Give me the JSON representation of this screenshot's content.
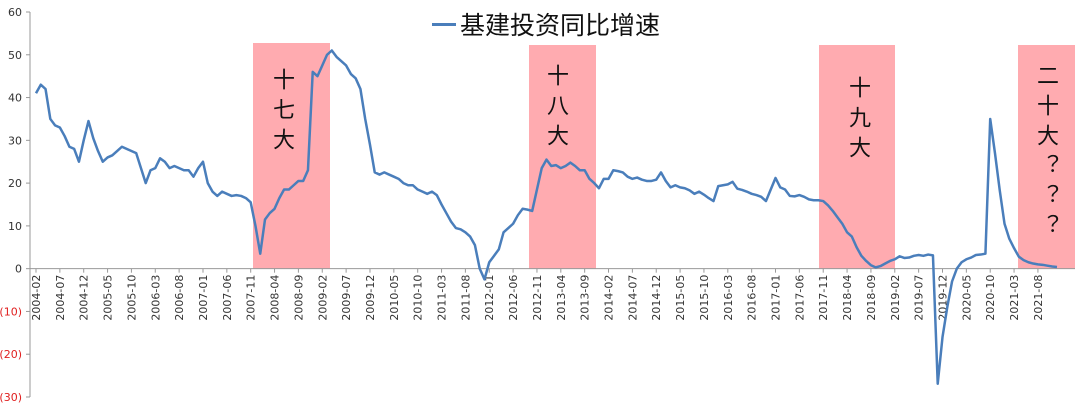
{
  "chart_data": {
    "type": "line",
    "categories": [
      "2004-02",
      null,
      null,
      null,
      null,
      "2004-07",
      null,
      null,
      null,
      null,
      "2004-12",
      null,
      null,
      null,
      null,
      "2005-05",
      null,
      null,
      null,
      null,
      "2005-10",
      null,
      null,
      null,
      null,
      "2006-03",
      null,
      null,
      null,
      null,
      "2006-08",
      null,
      null,
      null,
      null,
      "2007-01",
      null,
      null,
      null,
      null,
      "2007-06",
      null,
      null,
      null,
      null,
      "2007-11",
      null,
      null,
      null,
      null,
      "2008-04",
      null,
      null,
      null,
      null,
      "2008-09",
      null,
      null,
      null,
      null,
      "2009-02",
      null,
      null,
      null,
      null,
      "2009-07",
      null,
      null,
      null,
      null,
      "2009-12",
      null,
      null,
      null,
      null,
      "2010-05",
      null,
      null,
      null,
      null,
      "2010-10",
      null,
      null,
      null,
      null,
      "2011-03",
      null,
      null,
      null,
      null,
      "2011-08",
      null,
      null,
      null,
      null,
      "2012-01",
      null,
      null,
      null,
      null,
      "2012-06",
      null,
      null,
      null,
      null,
      "2012-11",
      null,
      null,
      null,
      null,
      "2013-04",
      null,
      null,
      null,
      null,
      "2013-09",
      null,
      null,
      null,
      null,
      "2014-02",
      null,
      null,
      null,
      null,
      "2014-07",
      null,
      null,
      null,
      null,
      "2014-12",
      null,
      null,
      null,
      null,
      "2015-05",
      null,
      null,
      null,
      null,
      "2015-10",
      null,
      null,
      null,
      null,
      "2016-03",
      null,
      null,
      null,
      null,
      "2016-08",
      null,
      null,
      null,
      null,
      "2017-01",
      null,
      null,
      null,
      null,
      "2017-06",
      null,
      null,
      null,
      null,
      "2017-11",
      null,
      null,
      null,
      null,
      "2018-04",
      null,
      null,
      null,
      null,
      "2018-09",
      null,
      null,
      null,
      null,
      "2019-02",
      null,
      null,
      null,
      null,
      "2019-07",
      null,
      null,
      null,
      null,
      "2019-12",
      null,
      null,
      null,
      null,
      "2020-05",
      null,
      null,
      null,
      null,
      "2020-10",
      null,
      null,
      null,
      null,
      "2021-03",
      null,
      null,
      null,
      null,
      "2021-08",
      null,
      null,
      null,
      null
    ],
    "series": [
      {
        "name": "基建投资同比增速",
        "color": "#4a7ebb",
        "values": [
          41,
          43,
          42,
          35,
          33.5,
          33,
          31,
          28.5,
          28,
          25,
          30,
          34.5,
          30.5,
          27.5,
          25,
          26,
          26.5,
          27.5,
          28.5,
          28,
          27.5,
          27,
          23.5,
          20,
          23,
          23.5,
          25.8,
          25,
          23.5,
          24,
          23.5,
          23,
          23,
          21.5,
          23.5,
          25,
          20,
          18,
          17,
          18,
          17.5,
          17,
          17.2,
          17,
          16.5,
          15.5,
          10,
          3.5,
          11.5,
          13,
          14,
          16.5,
          18.5,
          18.5,
          19.5,
          20.5,
          20.5,
          23,
          46,
          45,
          47.5,
          50,
          51,
          49.5,
          48.5,
          47.5,
          45.5,
          44.5,
          42,
          35,
          29,
          22.5,
          22,
          22.5,
          22,
          21.5,
          21,
          20,
          19.5,
          19.5,
          18.5,
          18,
          17.5,
          18,
          17.2,
          15,
          13,
          11,
          9.5,
          9.2,
          8.5,
          7.5,
          5.5,
          0,
          -2.5,
          1.5,
          3,
          4.5,
          8.5,
          9.5,
          10.5,
          12.5,
          14,
          13.8,
          13.5,
          18.5,
          23.5,
          25.5,
          24,
          24.2,
          23.5,
          24,
          24.8,
          24,
          23,
          23,
          21,
          20,
          18.8,
          21,
          21,
          23,
          22.8,
          22.5,
          21.5,
          21,
          21.3,
          20.8,
          20.5,
          20.5,
          20.8,
          22.5,
          20.5,
          19,
          19.5,
          19,
          18.8,
          18.3,
          17.5,
          18,
          17.3,
          16.5,
          15.8,
          19.3,
          19.5,
          19.7,
          20.3,
          18.7,
          18.4,
          18,
          17.5,
          17.2,
          16.8,
          15.8,
          18.5,
          21.2,
          19,
          18.5,
          17,
          16.9,
          17.2,
          16.8,
          16.2,
          16,
          16,
          15.8,
          14.8,
          13.5,
          12,
          10.5,
          8.5,
          7.5,
          5,
          3,
          1.8,
          0.8,
          0.3,
          0.6,
          1.2,
          1.8,
          2.2,
          2.9,
          2.5,
          2.6,
          3.0,
          3.2,
          3.0,
          3.3,
          3.1,
          -26.9,
          -16,
          -9,
          -3,
          0,
          1.5,
          2.2,
          2.6,
          3.2,
          3.3,
          3.5,
          35,
          27,
          18.3,
          10.5,
          7,
          4.8,
          2.8,
          2,
          1.5,
          1.2,
          1,
          0.9,
          0.7,
          0.5,
          0.4
        ]
      }
    ],
    "ylim": [
      -30,
      60
    ],
    "yticks": [
      60,
      50,
      40,
      30,
      20,
      10,
      0,
      {
        "value": -10,
        "label": "(10)"
      },
      {
        "value": -20,
        "label": "(20)"
      },
      {
        "value": -30,
        "label": "(30)"
      }
    ],
    "negative_tick_color": "#e02020",
    "grid": false,
    "annotations": [
      {
        "text": "十七大",
        "color": "#ffabb0"
      },
      {
        "text": "十八大",
        "color": "#ffabb0"
      },
      {
        "text": "十九大",
        "color": "#ffabb0"
      },
      {
        "text": "二十大？？？",
        "color": "#ffabb0"
      }
    ]
  }
}
